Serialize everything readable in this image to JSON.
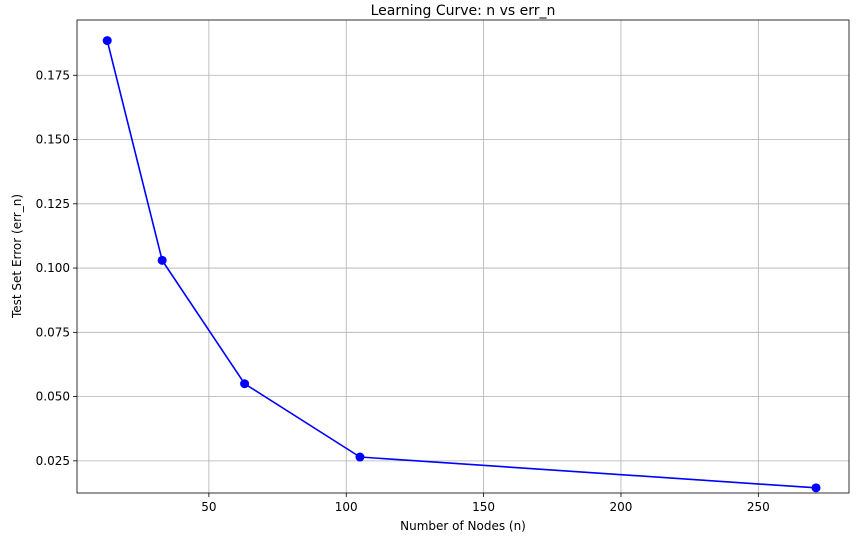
{
  "chart_data": {
    "type": "line",
    "title": "Learning Curve: n vs err_n",
    "xlabel": "Number of Nodes (n)",
    "ylabel": "Test Set Error (err_n)",
    "grid": true,
    "xlim": [
      2,
      283
    ],
    "ylim": [
      0.0125,
      0.1965
    ],
    "xticks": [
      50,
      100,
      150,
      200,
      250
    ],
    "xtick_labels": [
      "50",
      "100",
      "150",
      "200",
      "250"
    ],
    "yticks": [
      0.025,
      0.05,
      0.075,
      0.1,
      0.125,
      0.15,
      0.175
    ],
    "ytick_labels": [
      "0.025",
      "0.050",
      "0.075",
      "0.100",
      "0.125",
      "0.150",
      "0.175"
    ],
    "series": [
      {
        "color": "#0000ff",
        "marker": "circle",
        "x": [
          13,
          33,
          63,
          105,
          271
        ],
        "y": [
          0.1885,
          0.103,
          0.055,
          0.0265,
          0.0145
        ]
      }
    ]
  }
}
